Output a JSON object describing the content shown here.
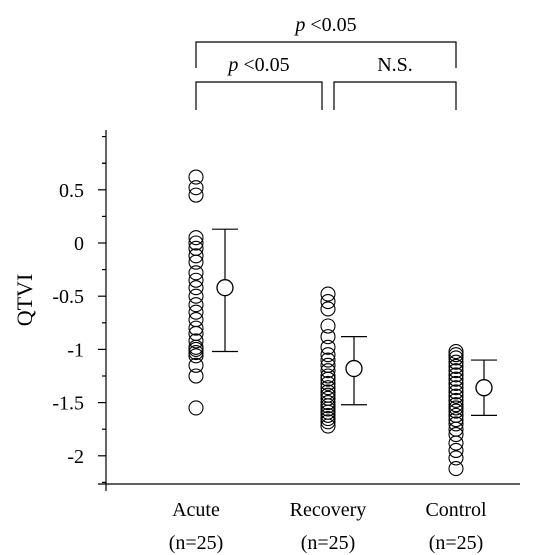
{
  "chart_data": {
    "type": "scatter",
    "ylabel": "QTVI",
    "ylim": [
      -2.3,
      1.05
    ],
    "yticks": [
      -2,
      -1.5,
      -1,
      -0.5,
      0,
      0.5
    ],
    "ytick_labels": [
      "-2",
      "-1.5",
      "-1",
      "-0.5",
      "0",
      "0.5"
    ],
    "groups": [
      {
        "label": "Acute",
        "n_label": "(n=25)",
        "values": [
          0.62,
          0.52,
          0.45,
          0.05,
          0.0,
          -0.05,
          -0.12,
          -0.18,
          -0.28,
          -0.35,
          -0.42,
          -0.5,
          -0.58,
          -0.65,
          -0.72,
          -0.8,
          -0.85,
          -0.92,
          -0.98,
          -1.0,
          -1.03,
          -1.06,
          -1.15,
          -1.25,
          -1.55
        ],
        "mean": -0.42,
        "err_high": 0.13,
        "err_low": -1.02
      },
      {
        "label": "Recovery",
        "n_label": "(n=25)",
        "values": [
          -0.48,
          -0.55,
          -0.62,
          -0.78,
          -0.88,
          -0.98,
          -1.05,
          -1.1,
          -1.15,
          -1.2,
          -1.25,
          -1.28,
          -1.32,
          -1.36,
          -1.4,
          -1.43,
          -1.46,
          -1.5,
          -1.53,
          -1.56,
          -1.59,
          -1.62,
          -1.65,
          -1.68,
          -1.72
        ],
        "mean": -1.18,
        "err_high": -0.88,
        "err_low": -1.52
      },
      {
        "label": "Control",
        "n_label": "(n=25)",
        "values": [
          -1.02,
          -1.05,
          -1.08,
          -1.12,
          -1.16,
          -1.2,
          -1.24,
          -1.28,
          -1.32,
          -1.36,
          -1.4,
          -1.44,
          -1.48,
          -1.52,
          -1.55,
          -1.58,
          -1.62,
          -1.66,
          -1.7,
          -1.75,
          -1.8,
          -1.88,
          -1.95,
          -2.02,
          -2.12
        ],
        "mean": -1.36,
        "err_high": -1.1,
        "err_low": -1.62
      }
    ],
    "annotations": [
      {
        "from": "Acute",
        "to": "Control",
        "p_label": "p",
        "text": " <0.05"
      },
      {
        "from": "Acute",
        "to": "Recovery",
        "p_label": "p",
        "text": " <0.05"
      },
      {
        "from": "Recovery",
        "to": "Control",
        "p_label": "",
        "text": "N.S."
      }
    ]
  }
}
